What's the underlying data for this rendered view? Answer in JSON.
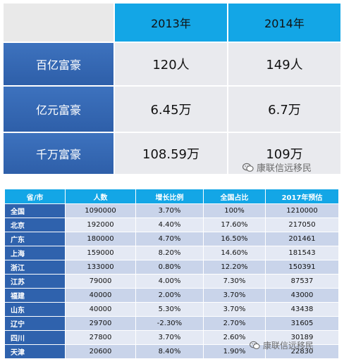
{
  "summary": {
    "years": [
      "2013年",
      "2014年"
    ],
    "rows": [
      {
        "label": "百亿富豪",
        "y2013": "120人",
        "y2014": "149人"
      },
      {
        "label": "亿元富豪",
        "y2013": "6.45万",
        "y2014": "6.7万"
      },
      {
        "label": "千万富豪",
        "y2013": "108.59万",
        "y2014": "109万"
      }
    ]
  },
  "provinces": {
    "headers": [
      "省/市",
      "人数",
      "增长比例",
      "全国占比",
      "2017年预估"
    ],
    "rows": [
      [
        "全国",
        "1090000",
        "3.70%",
        "100%",
        "1210000"
      ],
      [
        "北京",
        "192000",
        "4.40%",
        "17.60%",
        "217050"
      ],
      [
        "广东",
        "180000",
        "4.70%",
        "16.50%",
        "201461"
      ],
      [
        "上海",
        "159000",
        "8.20%",
        "14.60%",
        "181543"
      ],
      [
        "浙江",
        "133000",
        "0.80%",
        "12.20%",
        "150391"
      ],
      [
        "江苏",
        "79000",
        "4.00%",
        "7.30%",
        "87537"
      ],
      [
        "福建",
        "40000",
        "2.00%",
        "3.70%",
        "43000"
      ],
      [
        "山东",
        "40000",
        "5.30%",
        "3.70%",
        "43438"
      ],
      [
        "辽宁",
        "29700",
        "-2.30%",
        "2.70%",
        "31605"
      ],
      [
        "四川",
        "27800",
        "3.70%",
        "2.60%",
        "30189"
      ],
      [
        "天津",
        "20600",
        "8.40%",
        "1.90%",
        "22830"
      ]
    ]
  },
  "watermark": {
    "text": "康联信远移民",
    "icon": "wechat-icon"
  }
}
